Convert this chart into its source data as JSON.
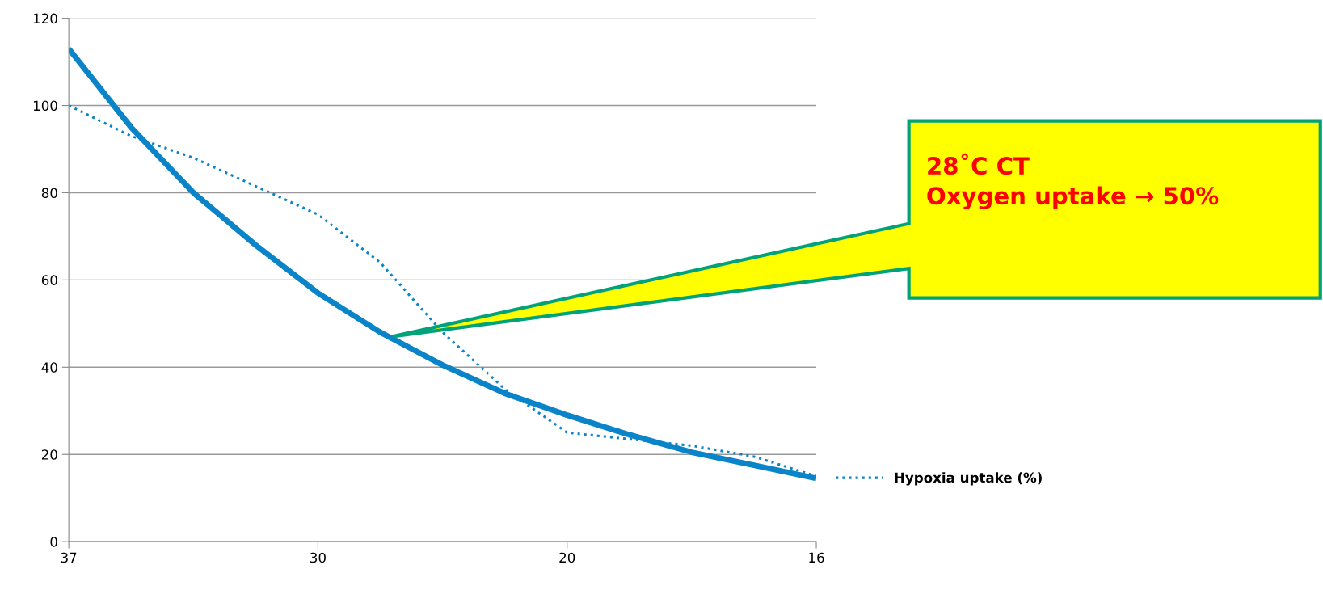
{
  "chart_data": {
    "type": "line",
    "categories": [
      "37",
      null,
      null,
      null,
      "30",
      null,
      null,
      null,
      "20",
      null,
      null,
      null,
      "16"
    ],
    "series": [
      {
        "color": "#0a84c8",
        "line_style": "solid",
        "values": [
          113,
          95,
          80,
          68,
          57,
          48,
          40.5,
          34,
          29,
          24.5,
          20.5,
          17.5,
          14.5
        ]
      },
      {
        "name": "Hypoxia uptake (%)",
        "color": "#0a84c8",
        "line_style": "dotted",
        "values": [
          100,
          93,
          88,
          81.5,
          75,
          64,
          48,
          35,
          25,
          23.5,
          22,
          19.5,
          15
        ]
      }
    ],
    "ylim": [
      0,
      120
    ],
    "yticks": [
      0,
      20,
      40,
      60,
      80,
      100,
      120
    ],
    "grid": "y",
    "legend": "right",
    "marker": "none",
    "annotations": [
      "28˚C CT\nOxygen uptake → 50%"
    ]
  }
}
